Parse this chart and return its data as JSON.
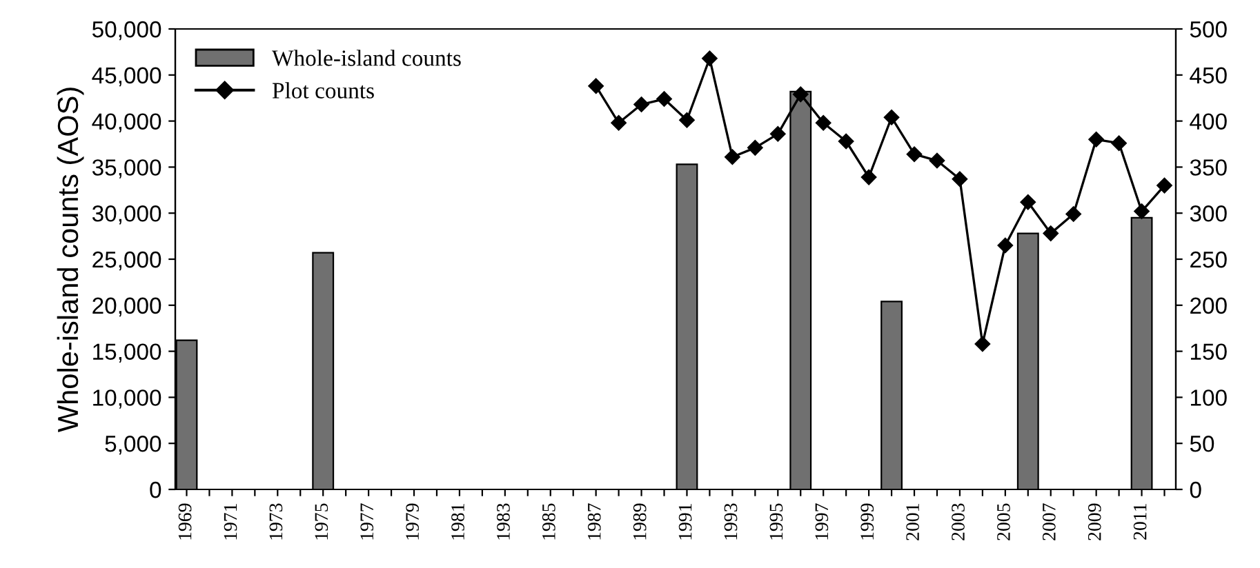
{
  "chart_data": {
    "type": "bar",
    "ylabel": "Whole-island counts (AOS)",
    "categories": [
      "1969",
      null,
      "1971",
      null,
      "1973",
      null,
      "1975",
      null,
      "1977",
      null,
      "1979",
      null,
      "1981",
      null,
      "1983",
      null,
      "1985",
      null,
      "1987",
      null,
      "1989",
      null,
      "1991",
      null,
      "1993",
      null,
      "1995",
      null,
      "1997",
      null,
      "1999",
      null,
      "2001",
      null,
      "2003",
      null,
      "2005",
      null,
      "2007",
      null,
      "2009",
      null,
      "2011",
      null
    ],
    "series": [
      {
        "name": "Whole-island counts",
        "color": "#707070",
        "values": [
          16200,
          null,
          null,
          null,
          null,
          null,
          25700,
          null,
          null,
          null,
          null,
          null,
          null,
          null,
          null,
          null,
          null,
          null,
          null,
          null,
          null,
          null,
          35300,
          null,
          null,
          null,
          null,
          43200,
          null,
          null,
          null,
          20400,
          null,
          null,
          null,
          null,
          null,
          27800,
          null,
          null,
          null,
          null,
          29500,
          null
        ]
      },
      {
        "name": "Plot counts",
        "type": "line",
        "axis": "y2",
        "color": "#000000",
        "marker": "diamond",
        "line_style": "solid",
        "values": [
          null,
          null,
          null,
          null,
          null,
          null,
          null,
          null,
          null,
          null,
          null,
          null,
          null,
          null,
          null,
          null,
          null,
          null,
          438,
          398,
          418,
          424,
          401,
          468,
          361,
          371,
          386,
          429,
          398,
          378,
          339,
          404,
          364,
          357,
          337,
          158,
          265,
          312,
          278,
          299,
          380,
          376,
          302,
          330
        ]
      }
    ],
    "ylim": [
      0,
      50000
    ],
    "yticks": [
      {
        "value": 0,
        "label": "0"
      },
      {
        "value": 5000,
        "label": "5,000"
      },
      {
        "value": 10000,
        "label": "10,000"
      },
      {
        "value": 15000,
        "label": "15,000"
      },
      {
        "value": 20000,
        "label": "20,000"
      },
      {
        "value": 25000,
        "label": "25,000"
      },
      {
        "value": 30000,
        "label": "30,000"
      },
      {
        "value": 35000,
        "label": "35,000"
      },
      {
        "value": 40000,
        "label": "40,000"
      },
      {
        "value": 45000,
        "label": "45,000"
      },
      {
        "value": 50000,
        "label": "50,000"
      }
    ],
    "y2lim": [
      0,
      500
    ],
    "y2ticks": [
      0,
      50,
      100,
      150,
      200,
      250,
      300,
      350,
      400,
      450,
      500
    ],
    "legend": "top left",
    "grid": false
  }
}
